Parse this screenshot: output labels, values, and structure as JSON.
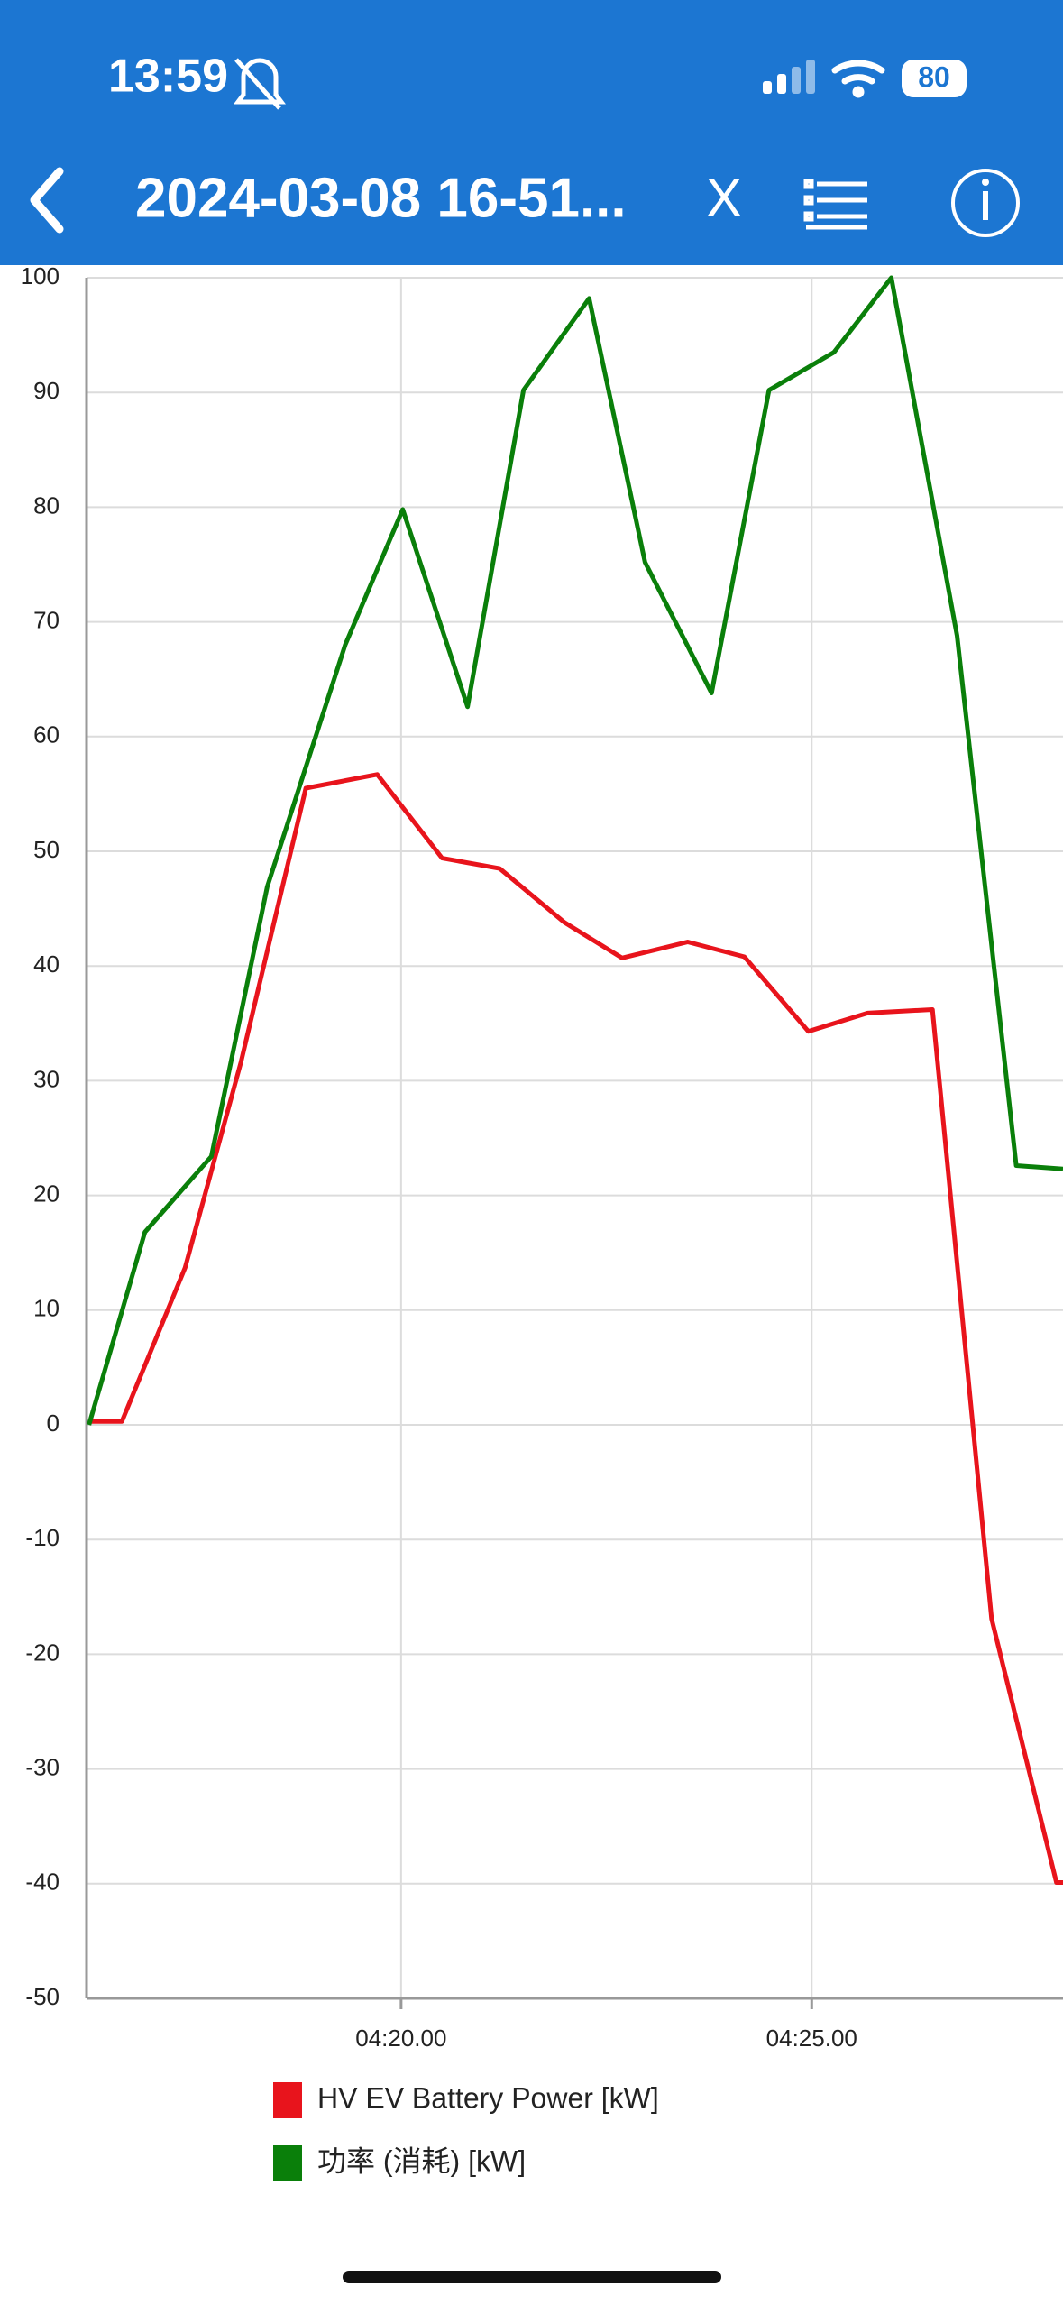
{
  "status_bar": {
    "time": "13:59",
    "battery": "80"
  },
  "header": {
    "title": "2024-03-08 16-51...",
    "close_label": "X"
  },
  "chart_data": {
    "type": "line",
    "series": [
      {
        "name": "HV EV Battery Power [kW]",
        "color": "#e8141c",
        "x": [
          256.2,
          256.6,
          257.37,
          258.05,
          258.84,
          259.71,
          260.5,
          261.2,
          261.99,
          262.69,
          263.49,
          264.18,
          264.96,
          265.68,
          266.47,
          267.19,
          267.98,
          268.06
        ],
        "values": [
          0.3,
          0.3,
          13.7,
          31.6,
          55.5,
          56.7,
          49.4,
          48.5,
          43.8,
          40.7,
          42.1,
          40.8,
          34.3,
          35.9,
          36.2,
          -16.9,
          -39.9,
          -39.9
        ]
      },
      {
        "name": "功率 (消耗) [kW]",
        "color": "#0a7f0a",
        "x": [
          256.2,
          256.88,
          257.69,
          258.37,
          259.32,
          260.02,
          260.81,
          261.49,
          262.29,
          262.97,
          263.78,
          264.48,
          265.27,
          265.97,
          266.77,
          267.49,
          268.06
        ],
        "values": [
          0,
          16.8,
          23.4,
          46.9,
          68.0,
          79.8,
          62.6,
          90.2,
          98.2,
          75.2,
          63.8,
          90.2,
          93.5,
          100,
          68.8,
          22.6,
          22.3
        ]
      }
    ],
    "xlim": [
      256.17,
      268.06
    ],
    "xticks": [
      {
        "value": 260,
        "label": "04:20.00"
      },
      {
        "value": 265,
        "label": "04:25.00"
      }
    ],
    "ylim": [
      -50,
      100
    ],
    "yticks": [
      -50,
      -40,
      -30,
      -20,
      -10,
      0,
      10,
      20,
      30,
      40,
      50,
      60,
      70,
      80,
      90,
      100
    ],
    "grid": true
  }
}
